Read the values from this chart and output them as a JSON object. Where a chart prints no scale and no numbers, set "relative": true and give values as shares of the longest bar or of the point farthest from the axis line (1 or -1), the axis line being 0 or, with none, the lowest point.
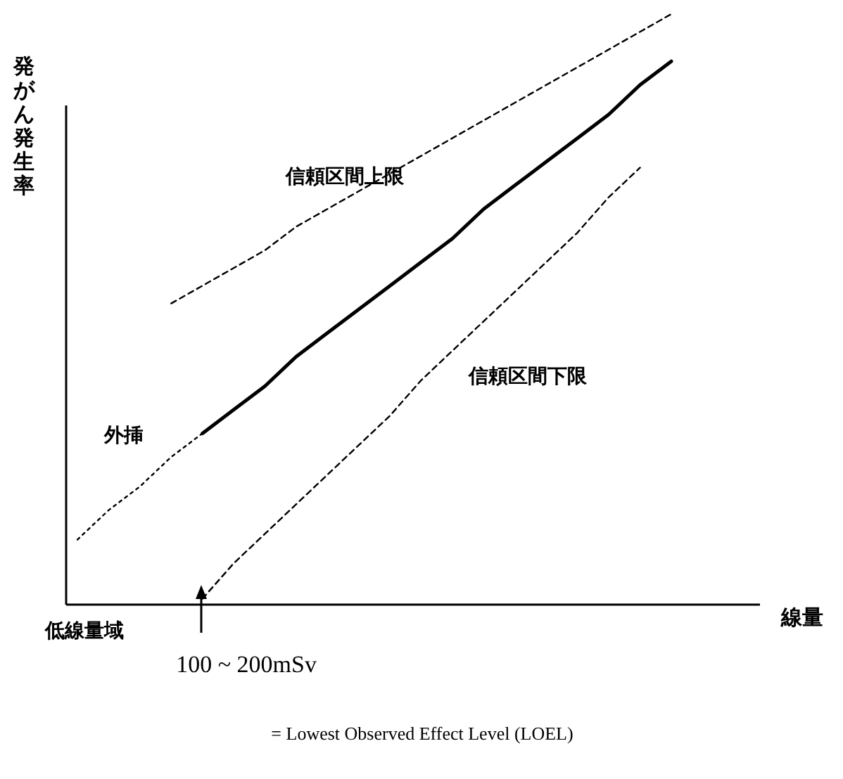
{
  "chart_data": {
    "type": "line",
    "relative": true,
    "ylabel": "発がん発生率",
    "xlabel": "線量",
    "categories": [
      null,
      null,
      null,
      null,
      null,
      null,
      null,
      null,
      null,
      null,
      null,
      null,
      null,
      null,
      null,
      null,
      null,
      null,
      null,
      null
    ],
    "marker": "none",
    "annotations": [
      "低線量域",
      "100 ~ 200mSv",
      "= Lowest Observed Effect Level (LOEL)"
    ],
    "series": [
      {
        "color": "#000000",
        "line_style": "solid",
        "values": [
          null,
          null,
          null,
          null,
          0.29,
          0.33,
          0.37,
          0.42,
          0.46,
          0.5,
          0.54,
          0.58,
          0.62,
          0.67,
          0.71,
          0.75,
          0.79,
          0.83,
          0.88,
          0.92
        ]
      },
      {
        "name": "外挿",
        "color": "#000000",
        "line_style": "dotted",
        "values": [
          0.11,
          0.16,
          0.2,
          0.25,
          0.29,
          null,
          null,
          null,
          null,
          null,
          null,
          null,
          null,
          null,
          null,
          null,
          null,
          null,
          null,
          null
        ]
      },
      {
        "name": "信頼区間上限",
        "color": "#000000",
        "line_style": "dashed",
        "values": [
          null,
          null,
          null,
          0.51,
          0.54,
          0.57,
          0.6,
          0.64,
          0.67,
          0.7,
          0.73,
          0.76,
          0.79,
          0.82,
          0.85,
          0.88,
          0.91,
          0.94,
          0.97,
          1
        ]
      },
      {
        "name": "信頼区間下限",
        "color": "#000000",
        "line_style": "dashed",
        "values": [
          null,
          null,
          null,
          null,
          0.01,
          0.07,
          0.12,
          0.17,
          0.22,
          0.27,
          0.32,
          0.38,
          0.43,
          0.48,
          0.53,
          0.58,
          0.63,
          0.69,
          0.74,
          null
        ]
      }
    ]
  }
}
